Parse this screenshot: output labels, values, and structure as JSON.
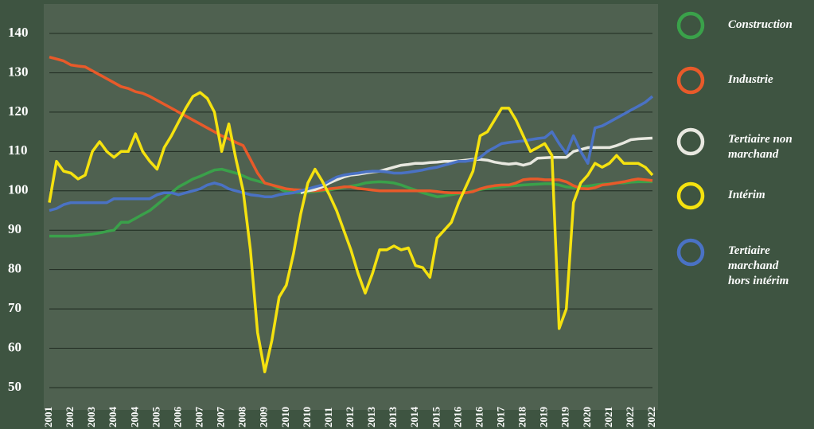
{
  "chart_data": {
    "type": "line",
    "categories": [
      "2001",
      null,
      null,
      "2002",
      null,
      null,
      "2003",
      null,
      null,
      "2004",
      null,
      null,
      "2004",
      null,
      null,
      "2005",
      null,
      null,
      "2006",
      null,
      null,
      "2007",
      null,
      null,
      "2007",
      null,
      null,
      "2008",
      null,
      null,
      "2009",
      null,
      null,
      "2010",
      null,
      null,
      "2010",
      null,
      null,
      "2011",
      null,
      null,
      "2012",
      null,
      null,
      "2013",
      null,
      null,
      "2013",
      null,
      null,
      "2014",
      null,
      null,
      "2015",
      null,
      null,
      "2016",
      null,
      null,
      "2016",
      null,
      null,
      "2017",
      null,
      null,
      "2018",
      null,
      null,
      "2019",
      null,
      null,
      "2019",
      null,
      null,
      "2020",
      null,
      null,
      "2021",
      null,
      null,
      "2022",
      null,
      null,
      "2022"
    ],
    "ylim": [
      45,
      147
    ],
    "yticks": [
      50,
      60,
      70,
      80,
      90,
      100,
      110,
      120,
      130,
      140
    ],
    "grid": true,
    "series": [
      {
        "name": "Construction",
        "color": "#3aa14a",
        "values": [
          88.5,
          88.5,
          88.5,
          88.5,
          88.6,
          88.8,
          89,
          89.3,
          89.7,
          90,
          92,
          92,
          93,
          94,
          95,
          96.5,
          98,
          99.5,
          101,
          102,
          103,
          103.7,
          104.5,
          105.3,
          105.5,
          105,
          104.5,
          103.8,
          103,
          102.5,
          102,
          101.5,
          100.5,
          99.8,
          99.6,
          99.5,
          99.6,
          99.8,
          100,
          100.2,
          100.5,
          100.8,
          101.2,
          101.5,
          102,
          102.2,
          102.3,
          102.2,
          102,
          101.5,
          100.8,
          100.2,
          99.5,
          99,
          98.5,
          98.7,
          99,
          99.3,
          99.6,
          100,
          100.3,
          100.6,
          100.8,
          101,
          101.2,
          101.3,
          101.5,
          101.6,
          101.7,
          101.8,
          101.8,
          101.5,
          101,
          100.8,
          101,
          101.2,
          101.5,
          101.7,
          101.8,
          102,
          102,
          102.2,
          102.3,
          102.3,
          102.3
        ]
      },
      {
        "name": "Industrie",
        "color": "#e85a2a",
        "values": [
          134,
          133.5,
          133,
          132,
          131.7,
          131.5,
          130.5,
          129.5,
          128.5,
          127.5,
          126.5,
          126,
          125.2,
          124.8,
          124,
          123,
          122,
          121,
          120,
          119,
          118,
          117,
          116,
          115,
          114,
          113.2,
          112.3,
          111.5,
          108,
          104.5,
          102,
          101.5,
          101,
          100.5,
          100.3,
          100.2,
          100,
          100,
          100.2,
          100.5,
          100.7,
          101,
          101,
          100.6,
          100.4,
          100.2,
          100,
          100,
          100,
          100,
          100,
          100,
          100,
          100,
          99.8,
          99.6,
          99.5,
          99.5,
          99.5,
          99.8,
          100.5,
          101,
          101.3,
          101.5,
          101.5,
          102,
          102.8,
          103,
          103,
          102.8,
          102.8,
          102.8,
          102.3,
          101.3,
          100.6,
          100.5,
          100.8,
          101.5,
          101.7,
          102,
          102.3,
          102.7,
          103,
          102.8,
          102.6
        ]
      },
      {
        "name": "Tertiaire non marchand",
        "color": "#e8e8e0",
        "values": [
          null,
          null,
          null,
          null,
          null,
          null,
          null,
          null,
          null,
          null,
          null,
          null,
          null,
          null,
          null,
          null,
          null,
          null,
          null,
          null,
          null,
          null,
          null,
          null,
          null,
          null,
          null,
          null,
          null,
          null,
          null,
          null,
          null,
          null,
          null,
          99.5,
          100,
          100.3,
          101,
          102,
          102.8,
          103.5,
          104,
          104.2,
          104.5,
          104.8,
          105,
          105.5,
          106,
          106.5,
          106.7,
          107,
          107,
          107.2,
          107.3,
          107.5,
          107.5,
          107.6,
          107.8,
          108,
          108,
          107.8,
          107.3,
          107,
          106.8,
          107,
          106.5,
          107,
          108.3,
          108.4,
          108.5,
          108.5,
          108.5,
          110,
          110.5,
          111,
          111,
          111,
          111,
          111.5,
          112.2,
          113,
          113.2,
          113.3,
          113.4
        ]
      },
      {
        "name": "Tertiaire marchand hors intérim",
        "color": "#4a72c4",
        "values": [
          95,
          95.5,
          96.5,
          97,
          97,
          97,
          97,
          97,
          97,
          98,
          98,
          98,
          98,
          98,
          98,
          99,
          99.5,
          99.5,
          99,
          99.5,
          100,
          100.5,
          101.5,
          102,
          101.5,
          100.5,
          100,
          99.5,
          99,
          98.8,
          98.5,
          98.5,
          99,
          99.3,
          99.5,
          100,
          100.5,
          101,
          101.5,
          102.5,
          103.5,
          104,
          104.3,
          104.5,
          104.8,
          105,
          105,
          104.8,
          104.5,
          104.5,
          104.7,
          105,
          105.3,
          105.7,
          106,
          106.5,
          107,
          107.5,
          107.5,
          107.8,
          108.5,
          110,
          111,
          112,
          112.3,
          112.5,
          112.7,
          113,
          113.3,
          113.5,
          115,
          112,
          109.5,
          114,
          110,
          107,
          116,
          116.5,
          117.5,
          118.5,
          119.5,
          120.5,
          121.5,
          122.5,
          124
        ]
      },
      {
        "name": "Intérim",
        "color": "#f5e20f",
        "values": [
          97,
          107.5,
          105,
          104.5,
          103,
          104,
          110,
          112.5,
          110,
          108.5,
          110,
          110,
          114.5,
          110,
          107.5,
          105.5,
          111,
          114,
          117.5,
          121,
          124,
          125,
          123.5,
          120,
          110,
          117,
          108,
          100,
          85,
          64,
          54,
          62,
          73,
          76,
          84,
          94,
          102,
          105.5,
          102.5,
          99,
          95,
          90,
          85,
          79,
          74,
          79,
          85,
          85,
          86,
          85,
          85.5,
          81,
          80.5,
          78,
          88,
          90,
          92,
          97,
          101,
          105,
          114,
          115,
          118,
          121,
          121,
          118,
          114,
          110,
          111,
          112,
          109,
          65,
          70,
          97,
          102,
          104,
          107,
          106,
          107,
          109,
          107,
          107,
          107,
          106,
          104
        ]
      }
    ]
  }
}
